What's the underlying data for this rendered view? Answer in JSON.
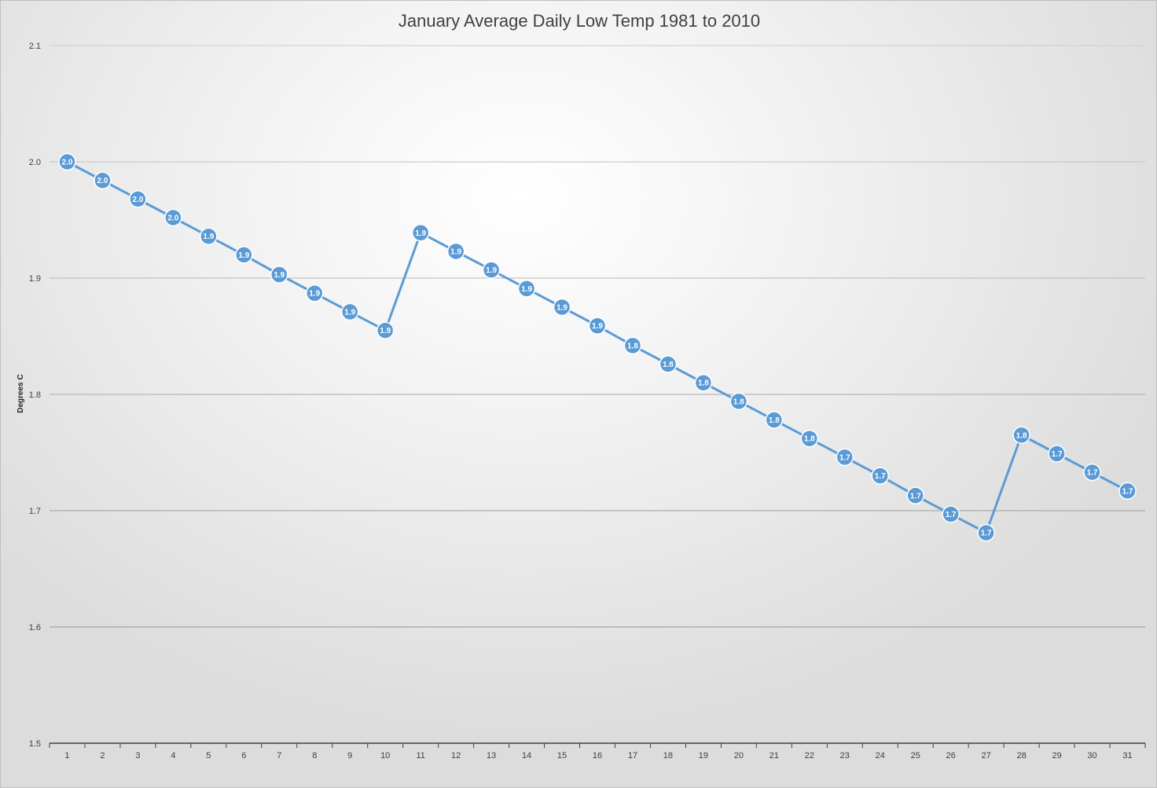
{
  "chart_data": {
    "type": "line",
    "title": "January Average Daily Low Temp 1981 to 2010",
    "xlabel": "",
    "ylabel": "Degrees C",
    "categories": [
      "1",
      "2",
      "3",
      "4",
      "5",
      "6",
      "7",
      "8",
      "9",
      "10",
      "11",
      "12",
      "13",
      "14",
      "15",
      "16",
      "17",
      "18",
      "19",
      "20",
      "21",
      "22",
      "23",
      "24",
      "25",
      "26",
      "27",
      "28",
      "29",
      "30",
      "31"
    ],
    "series": [
      {
        "values": [
          2.0,
          1.984,
          1.968,
          1.952,
          1.936,
          1.92,
          1.903,
          1.887,
          1.871,
          1.855,
          1.939,
          1.923,
          1.907,
          1.891,
          1.875,
          1.859,
          1.842,
          1.826,
          1.81,
          1.794,
          1.778,
          1.762,
          1.746,
          1.73,
          1.713,
          1.697,
          1.681,
          1.765,
          1.749,
          1.733,
          1.717
        ],
        "data_labels": [
          "2.0",
          "2.0",
          "2.0",
          "2.0",
          "1.9",
          "1.9",
          "1.9",
          "1.9",
          "1.9",
          "1.9",
          "1.9",
          "1.9",
          "1.9",
          "1.9",
          "1.9",
          "1.9",
          "1.8",
          "1.8",
          "1.8",
          "1.8",
          "1.8",
          "1.8",
          "1.7",
          "1.7",
          "1.7",
          "1.7",
          "1.7",
          "1.8",
          "1.7",
          "1.7",
          "1.7"
        ],
        "color": "#5b9bd5"
      }
    ],
    "ylim": [
      1.5,
      2.1
    ],
    "yticks": [
      "1.5",
      "1.6",
      "1.7",
      "1.8",
      "1.9",
      "2.0",
      "2.1"
    ],
    "grid": true,
    "legend": "none"
  }
}
